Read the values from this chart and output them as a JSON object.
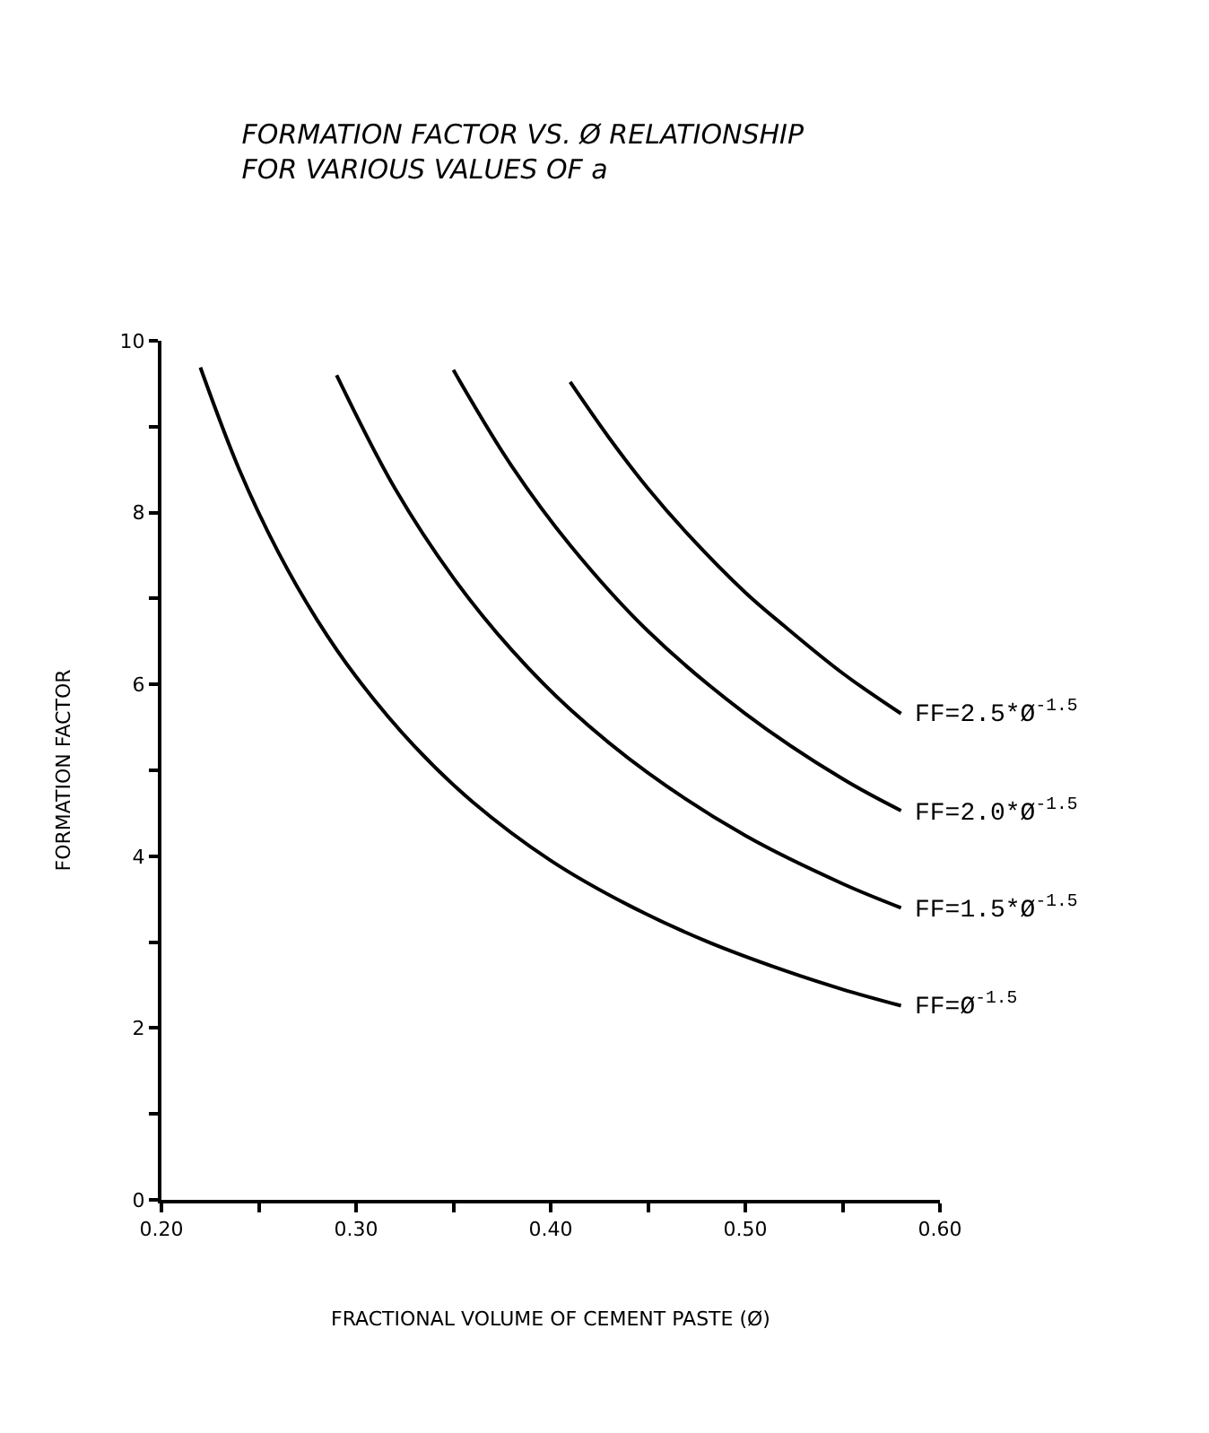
{
  "chart_data": {
    "type": "line",
    "title": "FORMATION FACTOR VS. Ø RELATIONSHIP\nFOR VARIOUS VALUES OF a",
    "xlabel": "FRACTIONAL VOLUME OF CEMENT PASTE (Ø)",
    "ylabel": "FORMATION FACTOR",
    "xlim": [
      0.2,
      0.6
    ],
    "ylim": [
      0,
      10
    ],
    "xticks": [
      {
        "value": 0.2,
        "label": "0.20"
      },
      {
        "value": 0.25,
        "label": null
      },
      {
        "value": 0.3,
        "label": "0.30"
      },
      {
        "value": 0.35,
        "label": null
      },
      {
        "value": 0.4,
        "label": "0.40"
      },
      {
        "value": 0.45,
        "label": null
      },
      {
        "value": 0.5,
        "label": "0.50"
      },
      {
        "value": 0.55,
        "label": null
      },
      {
        "value": 0.6,
        "label": "0.60"
      }
    ],
    "yticks": [
      0,
      {
        "value": 1,
        "label": null
      },
      2,
      {
        "value": 3,
        "label": null
      },
      4,
      {
        "value": 5,
        "label": null
      },
      6,
      {
        "value": 7,
        "label": null
      },
      8,
      {
        "value": 9,
        "label": null
      },
      10
    ],
    "legend": false,
    "marker": "none",
    "line_style": "solid",
    "series": [
      {
        "name": "FF=Ø$^{-1.5}$",
        "color": "#000000",
        "x": [
          0.22,
          0.24,
          0.26,
          0.28,
          0.3,
          0.33,
          0.36,
          0.4,
          0.44,
          0.48,
          0.52,
          0.55,
          0.58
        ],
        "values": [
          9.69,
          8.5,
          7.54,
          6.75,
          6.09,
          5.28,
          4.63,
          3.95,
          3.43,
          3.01,
          2.67,
          2.45,
          2.26
        ]
      },
      {
        "name": "FF=1.5*Ø$^{-1.5}$",
        "color": "#000000",
        "x": [
          0.29,
          0.32,
          0.35,
          0.38,
          0.41,
          0.45,
          0.5,
          0.55,
          0.58
        ],
        "values": [
          9.6,
          8.28,
          7.24,
          6.4,
          5.71,
          4.97,
          4.24,
          3.68,
          3.4
        ]
      },
      {
        "name": "FF=2.0*Ø$^{-1.5}$",
        "color": "#000000",
        "x": [
          0.35,
          0.38,
          0.41,
          0.45,
          0.5,
          0.55,
          0.58
        ],
        "values": [
          9.66,
          8.54,
          7.62,
          6.62,
          5.66,
          4.9,
          4.53
        ]
      },
      {
        "name": "FF=2.5*Ø$^{-1.5}$",
        "color": "#000000",
        "x": [
          0.41,
          0.43,
          0.45,
          0.47,
          0.5,
          0.52,
          0.55,
          0.58
        ],
        "values": [
          9.52,
          8.87,
          8.28,
          7.76,
          7.07,
          6.68,
          6.13,
          5.66
        ]
      }
    ]
  }
}
